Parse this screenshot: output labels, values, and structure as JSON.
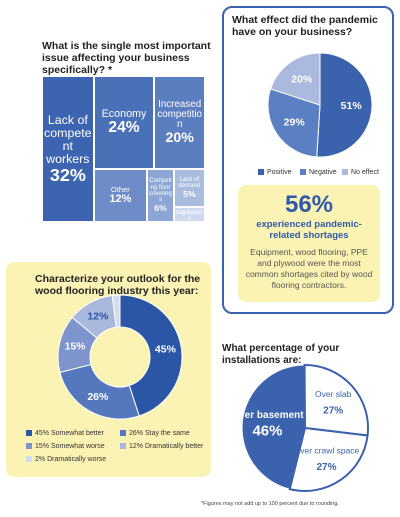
{
  "chart_data": [
    {
      "type": "treemap",
      "title": "What is the single most important issue affecting your business specifically? *",
      "categories": [
        "Lack of competent workers",
        "Economy",
        "Increased competition",
        "Other",
        "Competing floor coverings",
        "Lack of demand",
        "Government regulations"
      ],
      "values": [
        32,
        24,
        20,
        12,
        6,
        5,
        2
      ],
      "value_labels": [
        "32%",
        "24%",
        "20%",
        "12%",
        "6%",
        "5%",
        "2%"
      ],
      "colors": [
        "#3d64b0",
        "#4a70b8",
        "#5a7ec0",
        "#6d8cc8",
        "#8ea6d6",
        "#a9bce0",
        "#cfd9ee"
      ]
    },
    {
      "type": "pie",
      "title": "What effect did the pandemic have on your business?",
      "categories": [
        "Positive",
        "Negative",
        "No effect"
      ],
      "values": [
        51,
        29,
        20
      ],
      "value_labels": [
        "51%",
        "29%",
        "20%"
      ],
      "colors": [
        "#3a62ad",
        "#5a7fc2",
        "#aab9dd"
      ]
    },
    {
      "type": "donut",
      "title": "Characterize your outlook for the wood flooring industry this year:",
      "categories": [
        "Somewhat better",
        "Stay the same",
        "Somewhat worse",
        "Dramatically better",
        "Dramatically worse"
      ],
      "values": [
        45,
        26,
        15,
        12,
        2
      ],
      "value_labels": [
        "45%",
        "26%",
        "15%",
        "12%",
        "2%"
      ],
      "colors": [
        "#2b56a6",
        "#5577bd",
        "#7d95cc",
        "#a9b8dd",
        "#d5dcee"
      ]
    },
    {
      "type": "pie",
      "title": "What percentage of your installations are:",
      "categories": [
        "Over basement",
        "Over slab",
        "Over crawl space"
      ],
      "values": [
        46,
        27,
        27
      ],
      "value_labels": [
        "46%",
        "27%",
        "27%"
      ],
      "colors": [
        "#3b62ad",
        "#ffffff",
        "#ffffff"
      ]
    }
  ],
  "callout": {
    "value": "56%",
    "headline": "experienced pandemic-related shortages",
    "text": "Equipment, wood flooring, PPE and plywood were the most common shortages cited by wood flooring contractors."
  },
  "footnote": "*Figures may not add up to 100 percent due to rounding."
}
